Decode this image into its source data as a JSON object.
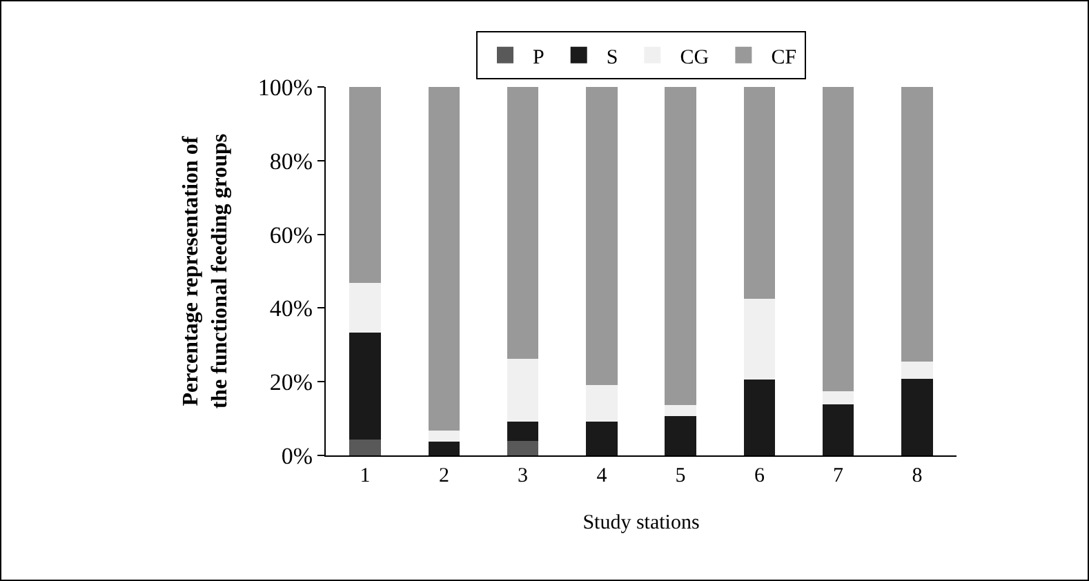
{
  "chart_data": {
    "type": "bar",
    "stacked": true,
    "xlabel": "Study stations",
    "ylabel": "Percentage representation of the functional feeding groups",
    "categories": [
      "1",
      "2",
      "3",
      "4",
      "5",
      "6",
      "7",
      "8"
    ],
    "series": [
      {
        "name": "P",
        "color": "#595959",
        "values": [
          4.4,
          0,
          4.0,
          0,
          0,
          0,
          0,
          0
        ]
      },
      {
        "name": "S",
        "color": "#1a1a1a",
        "values": [
          28.9,
          3.7,
          5.2,
          9.2,
          10.6,
          20.6,
          13.8,
          20.8
        ]
      },
      {
        "name": "CG",
        "color": "#f0f0f0",
        "values": [
          13.5,
          3.1,
          17.1,
          9.9,
          3.1,
          22.0,
          3.6,
          4.7
        ]
      },
      {
        "name": "CF",
        "color": "#999999",
        "values": [
          53.2,
          93.2,
          73.7,
          80.9,
          86.3,
          57.4,
          82.6,
          74.5
        ]
      }
    ],
    "ylim": [
      0,
      100
    ],
    "yticks": [
      {
        "value": 0,
        "label": "0%"
      },
      {
        "value": 20,
        "label": "20%"
      },
      {
        "value": 40,
        "label": "40%"
      },
      {
        "value": 60,
        "label": "60%"
      },
      {
        "value": 80,
        "label": "80%"
      },
      {
        "value": 100,
        "label": "100%"
      }
    ],
    "grid": false,
    "legend": "top"
  }
}
